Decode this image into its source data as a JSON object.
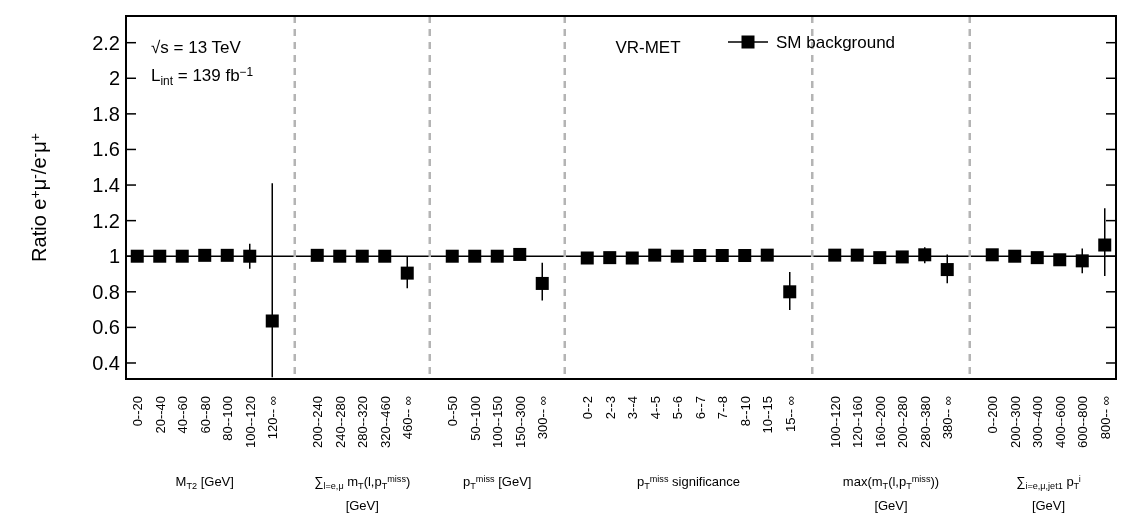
{
  "chart_data": {
    "type": "scatter",
    "ylabel": "Ratio e$^{+}$μ$^{-}$/e$^{-}$μ$^{+}$",
    "categories": [
      "0--20",
      "20--40",
      "40--60",
      "60--80",
      "80--100",
      "100--120",
      "120-- ∞",
      null,
      "200--240",
      "240--280",
      "280--320",
      "320--460",
      "460-- ∞",
      null,
      "0--50",
      "50--100",
      "100--150",
      "150--300",
      "300-- ∞",
      null,
      "0--2",
      "2--3",
      "3--4",
      "4--5",
      "5--6",
      "6--7",
      "7--8",
      "8--10",
      "10--15",
      "15-- ∞",
      null,
      "100--120",
      "120--160",
      "160--200",
      "200--280",
      "280--380",
      "380-- ∞",
      null,
      "0--200",
      "200--300",
      "300--400",
      "400--600",
      "600--800",
      "800-- ∞"
    ],
    "series": [
      {
        "name": "SM background",
        "color": "#000000",
        "marker": "square",
        "values": [
          1.0,
          1.0,
          1.0,
          1.005,
          1.005,
          1.0,
          0.636,
          null,
          1.005,
          1.0,
          1.0,
          1.0,
          0.905,
          null,
          1.0,
          1.0,
          1.0,
          1.01,
          0.847,
          null,
          0.99,
          0.992,
          0.99,
          1.006,
          1.0,
          1.004,
          1.004,
          1.004,
          1.006,
          0.8,
          null,
          1.006,
          1.006,
          0.992,
          0.996,
          1.008,
          0.925,
          null,
          1.008,
          1.0,
          0.992,
          0.98,
          0.974,
          1.063
        ],
        "errors": [
          null,
          null,
          null,
          null,
          null,
          0.07,
          [
            0.32,
            1.41
          ],
          null,
          null,
          null,
          null,
          null,
          [
            0.82,
            0.995
          ],
          null,
          0.02,
          null,
          null,
          null,
          [
            0.751,
            0.964
          ],
          null,
          0.02,
          null,
          null,
          null,
          null,
          null,
          null,
          null,
          null,
          [
            0.698,
            0.911
          ],
          null,
          null,
          null,
          null,
          null,
          [
            0.96,
            1.05
          ],
          [
            0.848,
            1.01
          ],
          null,
          null,
          null,
          null,
          null,
          [
            0.905,
            1.043
          ],
          [
            0.889,
            1.27
          ]
        ]
      }
    ],
    "ylim": [
      0.31,
      2.35
    ],
    "yticks": [
      0.4,
      0.6,
      0.8,
      1,
      1.2,
      1.4,
      1.6,
      1.8,
      2,
      2.2
    ],
    "grid": "x",
    "legend": "top",
    "ref_lines": [
      {
        "axis": "y",
        "value": 1,
        "color": "#000000",
        "line_style": "solid"
      }
    ],
    "annotations": [
      "√s = 13 TeV",
      "L$_{int}$ = 139 fb$^{−1}$",
      "VR-MET",
      "M$_{T2}$ [GeV]",
      "∑$_{l=e,μ}$ m$_{T}$(l,p$_{T}$$^{miss}$)\n[GeV]",
      "p$_{T}$$^{miss}$ [GeV]",
      "p$_{T}$$^{miss}$ significance",
      "max(m$_{T}$(l,p$_{T}$$^{miss}$))\n[GeV]",
      "∑$_{i=e,μ,jet1}$ p$_{T}$$^{i}$\n[GeV]"
    ]
  }
}
